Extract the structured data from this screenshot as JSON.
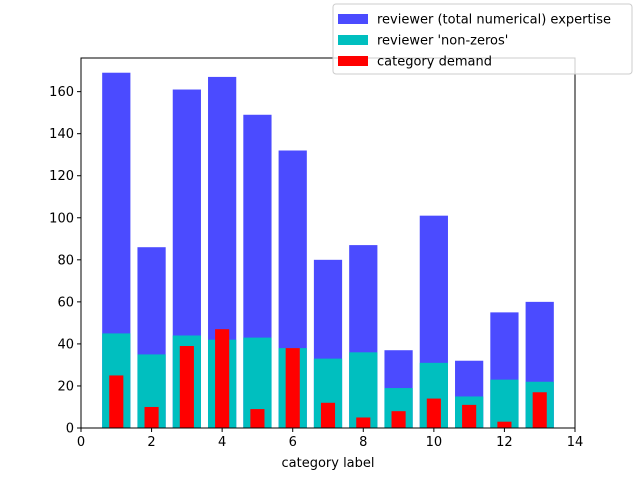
{
  "chart_data": {
    "type": "bar",
    "title": "",
    "xlabel": "category label",
    "ylabel": "",
    "xlim": [
      0,
      14
    ],
    "ylim": [
      0,
      176
    ],
    "xticks": [
      0,
      2,
      4,
      6,
      8,
      10,
      12,
      14
    ],
    "yticks": [
      0,
      20,
      40,
      60,
      80,
      100,
      120,
      140,
      160
    ],
    "grid": false,
    "legend_position": "upper-right (outside axes)",
    "x": [
      1,
      2,
      3,
      4,
      5,
      6,
      7,
      8,
      9,
      10,
      11,
      12,
      13
    ],
    "series": [
      {
        "name": "reviewer (total numerical) expertise",
        "color": "#4b4bff",
        "bar_width": 0.8,
        "values": [
          169,
          86,
          161,
          167,
          149,
          132,
          80,
          87,
          37,
          101,
          32,
          55,
          60
        ]
      },
      {
        "name": "reviewer 'non-zeros'",
        "color": "#00bfbf",
        "bar_width": 0.8,
        "values": [
          45,
          35,
          44,
          42,
          43,
          38,
          33,
          36,
          19,
          31,
          15,
          23,
          22
        ]
      },
      {
        "name": "category demand",
        "color": "#ff0000",
        "bar_width": 0.4,
        "values": [
          25,
          10,
          39,
          47,
          9,
          38,
          12,
          5,
          8,
          14,
          11,
          3,
          17
        ]
      }
    ]
  }
}
